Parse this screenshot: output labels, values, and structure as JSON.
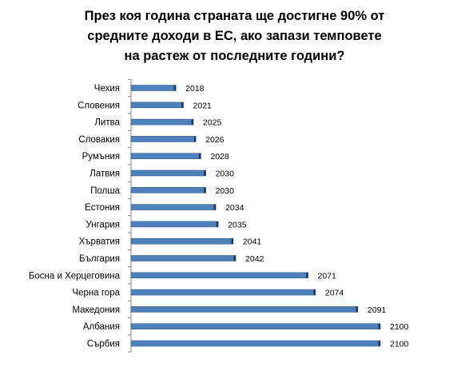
{
  "chart_data": {
    "type": "bar",
    "orientation": "horizontal",
    "title_lines": [
      "През коя година страната ще достигне 90% от",
      "средните доходи в ЕС, ако запази темповете",
      "на растеж от последните години?"
    ],
    "categories": [
      "Чехия",
      "Словения",
      "Литва",
      "Словакия",
      "Румъния",
      "Латвия",
      "Полша",
      "Естония",
      "Унгария",
      "Хърватия",
      "България",
      "Босна и Херцеговина",
      "Черна гора",
      "Македония",
      "Албания",
      "Сърбия"
    ],
    "values": [
      2018,
      2021,
      2025,
      2026,
      2028,
      2030,
      2030,
      2034,
      2035,
      2041,
      2042,
      2071,
      2074,
      2091,
      2100,
      2100
    ],
    "value_labels": [
      "2018",
      "2021",
      "2025",
      "2026",
      "2028",
      "2030",
      "2030",
      "2034",
      "2035",
      "2041",
      "2042",
      "2071",
      "2074",
      "2091",
      "2100",
      "2100"
    ],
    "xlim": [
      2000,
      2100
    ],
    "grid": false,
    "legend": "none",
    "bar_color": "#4f81bd",
    "bar_edge_color": "#385d8a"
  }
}
